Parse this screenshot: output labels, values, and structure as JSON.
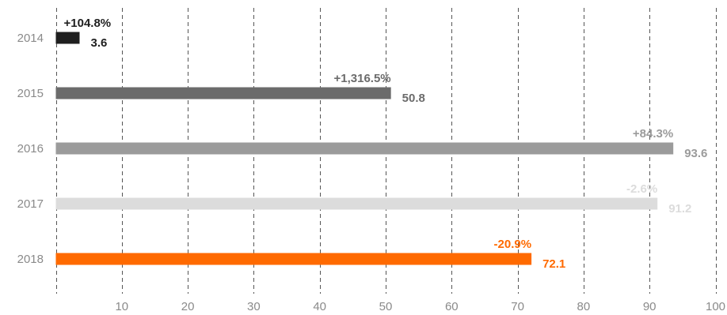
{
  "chart_data": {
    "type": "bar",
    "orientation": "horizontal",
    "categories": [
      "2014",
      "2015",
      "2016",
      "2017",
      "2018"
    ],
    "values": [
      3.6,
      50.8,
      93.6,
      91.2,
      72.1
    ],
    "value_labels": [
      "3.6",
      "50.8",
      "93.6",
      "91.2",
      "72.1"
    ],
    "change_labels": [
      "+104.8%",
      "+1,316.5%",
      "+84.3%",
      "-2.6%",
      "-20.9%"
    ],
    "colors": [
      "#1f1f1f",
      "#6b6b6b",
      "#9b9b9b",
      "#dcdcdc",
      "#ff6a00"
    ],
    "x_ticks": [
      10,
      20,
      30,
      40,
      50,
      60,
      70,
      80,
      90,
      100
    ],
    "xlim": [
      0,
      100
    ],
    "grid": true
  }
}
